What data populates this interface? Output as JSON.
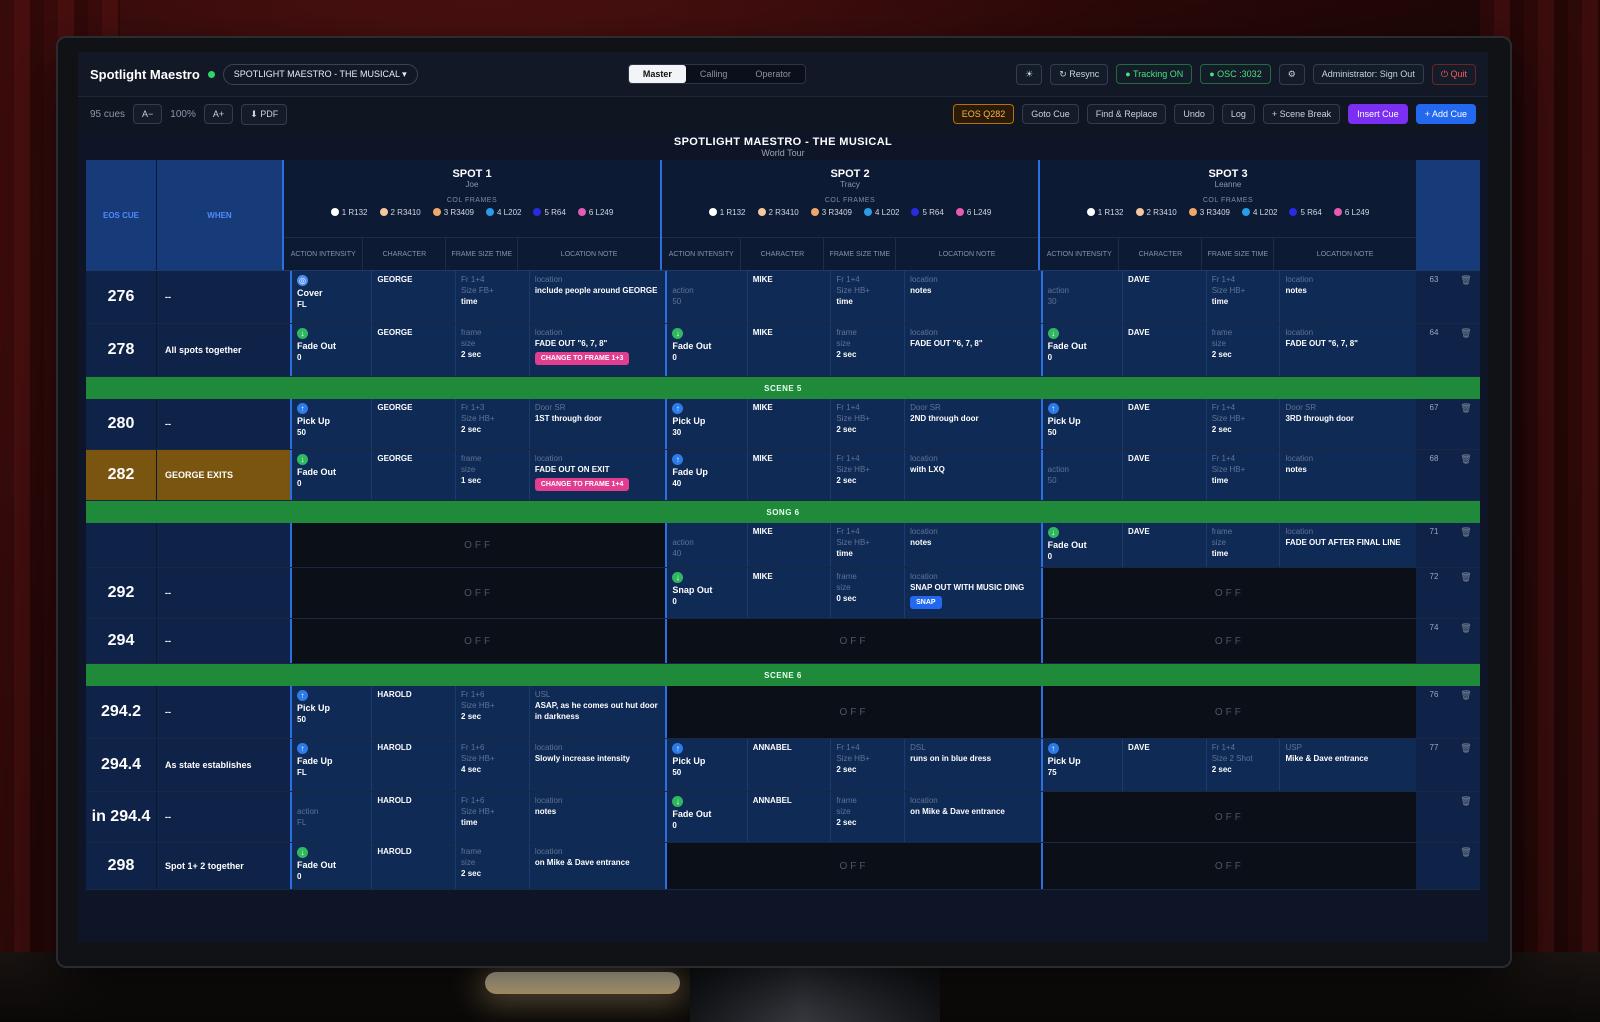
{
  "app": {
    "title": "Spotlight Maestro",
    "show_selector": "SPOTLIGHT MAESTRO - THE MUSICAL"
  },
  "view_tabs": [
    "Master",
    "Calling",
    "Operator"
  ],
  "top_actions": {
    "resync": "Resync",
    "tracking": "Tracking ON",
    "osc": "OSC :3032",
    "admin": "Administrator: Sign Out",
    "quit": "Quit"
  },
  "toolbar": {
    "cue_count": "95 cues",
    "font_down": "A−",
    "zoom": "100%",
    "font_up": "A+",
    "pdf": "PDF"
  },
  "cue_actions": {
    "eos": "EOS Q282",
    "goto": "Goto Cue",
    "find": "Find & Replace",
    "undo": "Undo",
    "log": "Log",
    "scene_break": "+ Scene Break",
    "insert": "Insert Cue",
    "add": "+ Add Cue"
  },
  "show": {
    "title": "SPOTLIGHT MAESTRO - THE MUSICAL",
    "subtitle": "World Tour"
  },
  "headers": {
    "eos_cue": "EOS CUE",
    "when": "WHEN",
    "col_frames": "COL FRAMES",
    "action": "ACTION INTENSITY",
    "character": "CHARACTER",
    "frame": "FRAME SIZE TIME",
    "location": "LOCATION NOTE"
  },
  "spots": [
    {
      "name": "SPOT 1",
      "operator": "Joe"
    },
    {
      "name": "SPOT 2",
      "operator": "Tracy"
    },
    {
      "name": "SPOT 3",
      "operator": "Leanne"
    }
  ],
  "frames": [
    "1 R132",
    "2 R3410",
    "3 R3409",
    "4 L202",
    "5 R64",
    "6 L249"
  ],
  "frame_colors": [
    "#ffffff",
    "#f3c7a0",
    "#f0a86a",
    "#2a9be6",
    "#2a2ae0",
    "#e35bb3"
  ],
  "off_label": "OFF",
  "rows": {
    "r276": {
      "cue": "276",
      "when": "--",
      "num": "63",
      "s1": {
        "act": "Cover",
        "int": "FL",
        "char": "GEORGE",
        "fr": "Fr 1+4",
        "sz": "Size FB+",
        "tm": "time",
        "loc_h": "location",
        "loc": "include people around GEORGE"
      },
      "s2": {
        "act": "action",
        "int": "50",
        "char": "MIKE",
        "fr": "Fr 1+4",
        "sz": "Size HB+",
        "tm": "time",
        "loc_h": "location",
        "loc": "notes"
      },
      "s3": {
        "act": "action",
        "int": "30",
        "char": "DAVE",
        "fr": "Fr 1+4",
        "sz": "Size HB+",
        "tm": "time",
        "loc_h": "location",
        "loc": "notes"
      }
    },
    "r278": {
      "cue": "278",
      "when": "All spots together",
      "num": "64",
      "s1": {
        "act": "Fade Out",
        "int": "0",
        "char": "GEORGE",
        "fr": "frame",
        "sz": "size",
        "tm": "2 sec",
        "loc_h": "location",
        "loc": "FADE OUT \"6, 7, 8\"",
        "chip": "CHANGE TO FRAME 1+3"
      },
      "s2": {
        "act": "Fade Out",
        "int": "0",
        "char": "MIKE",
        "fr": "frame",
        "sz": "size",
        "tm": "2 sec",
        "loc_h": "location",
        "loc": "FADE OUT \"6, 7, 8\""
      },
      "s3": {
        "act": "Fade Out",
        "int": "0",
        "char": "DAVE",
        "fr": "frame",
        "sz": "size",
        "tm": "2 sec",
        "loc_h": "location",
        "loc": "FADE OUT \"6, 7, 8\""
      }
    },
    "r280": {
      "cue": "280",
      "when": "--",
      "num": "67",
      "s1": {
        "act": "Pick Up",
        "int": "50",
        "char": "GEORGE",
        "fr": "Fr 1+3",
        "sz": "Size HB+",
        "tm": "2 sec",
        "loc_h": "Door SR",
        "loc": "1ST through door"
      },
      "s2": {
        "act": "Pick Up",
        "int": "30",
        "char": "MIKE",
        "fr": "Fr 1+4",
        "sz": "Size HB+",
        "tm": "2 sec",
        "loc_h": "Door SR",
        "loc": "2ND through door"
      },
      "s3": {
        "act": "Pick Up",
        "int": "50",
        "char": "DAVE",
        "fr": "Fr 1+4",
        "sz": "Size HB+",
        "tm": "2 sec",
        "loc_h": "Door SR",
        "loc": "3RD through door"
      }
    },
    "r282": {
      "cue": "282",
      "when": "GEORGE EXITS",
      "num": "68",
      "s1": {
        "act": "Fade Out",
        "int": "0",
        "char": "GEORGE",
        "fr": "frame",
        "sz": "size",
        "tm": "1 sec",
        "loc_h": "location",
        "loc": "FADE OUT ON EXIT",
        "chip": "CHANGE TO FRAME 1+4"
      },
      "s2": {
        "act": "Fade Up",
        "int": "40",
        "char": "MIKE",
        "fr": "Fr 1+4",
        "sz": "Size HB+",
        "tm": "2 sec",
        "loc_h": "location",
        "loc": "with LXQ"
      },
      "s3": {
        "act": "action",
        "int": "50",
        "char": "DAVE",
        "fr": "Fr 1+4",
        "sz": "Size HB+",
        "tm": "time",
        "loc_h": "location",
        "loc": "notes"
      }
    },
    "r290": {
      "cue": "",
      "when": "",
      "num": "71",
      "s2": {
        "act": "action",
        "int": "40",
        "char": "MIKE",
        "fr": "Fr 1+4",
        "sz": "Size HB+",
        "tm": "time",
        "loc_h": "location",
        "loc": "notes"
      },
      "s3": {
        "act": "Fade Out",
        "int": "0",
        "char": "DAVE",
        "fr": "frame",
        "sz": "size",
        "tm": "time",
        "loc_h": "location",
        "loc": "FADE OUT AFTER FINAL LINE"
      }
    },
    "r292": {
      "cue": "292",
      "when": "--",
      "num": "72",
      "s2": {
        "act": "Snap Out",
        "int": "0",
        "char": "MIKE",
        "fr": "frame",
        "sz": "size",
        "tm": "0 sec",
        "loc_h": "location",
        "loc": "SNAP OUT WITH MUSIC DING",
        "chip": "SNAP"
      }
    },
    "r294": {
      "cue": "294",
      "when": "--",
      "num": "74"
    },
    "r2942": {
      "cue": "294.2",
      "when": "--",
      "num": "76",
      "s1": {
        "act": "Pick Up",
        "int": "50",
        "char": "HAROLD",
        "fr": "Fr 1+6",
        "sz": "Size HB+",
        "tm": "2 sec",
        "loc_h": "USL",
        "loc": "ASAP, as he comes out hut door in darkness"
      }
    },
    "r2944": {
      "cue": "294.4",
      "when": "As state establishes",
      "num": "77",
      "s1": {
        "act": "Fade Up",
        "int": "FL",
        "char": "HAROLD",
        "fr": "Fr 1+6",
        "sz": "Size HB+",
        "tm": "4 sec",
        "loc_h": "location",
        "loc": "Slowly increase intensity"
      },
      "s2": {
        "act": "Pick Up",
        "int": "50",
        "char": "ANNABEL",
        "fr": "Fr 1+4",
        "sz": "Size HB+",
        "tm": "2 sec",
        "loc_h": "DSL",
        "loc": "runs on in blue dress"
      },
      "s3": {
        "act": "Pick Up",
        "int": "75",
        "char": "DAVE",
        "fr": "Fr 1+4",
        "sz": "Size 2 Shot",
        "tm": "2 sec",
        "loc_h": "USP",
        "loc": "Mike & Dave entrance"
      }
    },
    "rin": {
      "cue": "in 294.4",
      "when": "--",
      "s1": {
        "act": "action",
        "int": "FL",
        "char": "HAROLD",
        "fr": "Fr 1+6",
        "sz": "Size HB+",
        "tm": "time",
        "loc_h": "location",
        "loc": "notes"
      },
      "s2": {
        "act": "Fade Out",
        "int": "0",
        "char": "ANNABEL",
        "fr": "frame",
        "sz": "size",
        "tm": "2 sec",
        "loc_h": "location",
        "loc": "on Mike & Dave entrance"
      }
    },
    "r298": {
      "cue": "298",
      "when": "Spot 1+ 2 together",
      "s1": {
        "act": "Fade Out",
        "int": "0",
        "char": "HAROLD",
        "fr": "frame",
        "sz": "size",
        "tm": "2 sec",
        "loc_h": "location",
        "loc": "on Mike & Dave entrance"
      }
    }
  },
  "separators": {
    "scene5": "SCENE 5",
    "song6": "SONG 6",
    "scene6": "SCENE 6"
  },
  "colors": {
    "accent_blue": "#2d6fe0",
    "scene_green": "#1f8a3a",
    "highlight_amber": "#7a5510",
    "chip_pink": "#e23d8f"
  }
}
